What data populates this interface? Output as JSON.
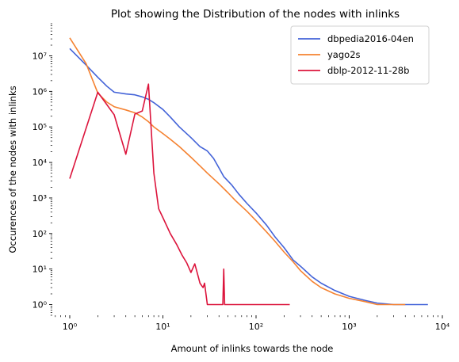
{
  "chart_data": {
    "type": "line",
    "title": "Plot showing the Distribution of the nodes with inlinks",
    "xlabel": "Amount of inlinks towards the node",
    "ylabel": "Occurences of the nodes with inlinks",
    "x_scale": "log",
    "y_scale": "log",
    "xlim": [
      0.65,
      10000
    ],
    "ylim": [
      0.5,
      80000000
    ],
    "grid": false,
    "legend_position": "top-right",
    "x_ticks": [
      {
        "value": 1,
        "label": "10⁰"
      },
      {
        "value": 10,
        "label": "10¹"
      },
      {
        "value": 100,
        "label": "10²"
      },
      {
        "value": 1000,
        "label": "10³"
      },
      {
        "value": 10000,
        "label": "10⁴"
      }
    ],
    "y_ticks": [
      {
        "value": 1,
        "label": "10⁰"
      },
      {
        "value": 10,
        "label": "10¹"
      },
      {
        "value": 100,
        "label": "10²"
      },
      {
        "value": 1000,
        "label": "10³"
      },
      {
        "value": 10000,
        "label": "10⁴"
      },
      {
        "value": 100000,
        "label": "10⁵"
      },
      {
        "value": 1000000,
        "label": "10⁶"
      },
      {
        "value": 10000000,
        "label": "10⁷"
      }
    ],
    "series": [
      {
        "name": "dbpedia2016-04en",
        "color": "#4363d8",
        "points": [
          [
            1,
            16000000
          ],
          [
            1.5,
            5500000
          ],
          [
            2,
            2500000
          ],
          [
            2.5,
            1400000
          ],
          [
            3,
            950000
          ],
          [
            4,
            850000
          ],
          [
            5,
            800000
          ],
          [
            6,
            700000
          ],
          [
            7,
            600000
          ],
          [
            8,
            480000
          ],
          [
            10,
            310000
          ],
          [
            12,
            190000
          ],
          [
            15,
            100000
          ],
          [
            20,
            50000
          ],
          [
            25,
            28000
          ],
          [
            30,
            21000
          ],
          [
            35,
            13000
          ],
          [
            40,
            7000
          ],
          [
            45,
            4000
          ],
          [
            55,
            2300
          ],
          [
            65,
            1300
          ],
          [
            80,
            700
          ],
          [
            100,
            380
          ],
          [
            130,
            170
          ],
          [
            160,
            80
          ],
          [
            200,
            40
          ],
          [
            250,
            18
          ],
          [
            300,
            12
          ],
          [
            400,
            6
          ],
          [
            500,
            4
          ],
          [
            700,
            2.5
          ],
          [
            1000,
            1.7
          ],
          [
            1500,
            1.3
          ],
          [
            2000,
            1.1
          ],
          [
            3000,
            1
          ],
          [
            7000,
            1
          ]
        ]
      },
      {
        "name": "yago2s",
        "color": "#f58231",
        "points": [
          [
            1,
            32000000
          ],
          [
            1.5,
            6000000
          ],
          [
            2,
            900000
          ],
          [
            2.5,
            500000
          ],
          [
            3,
            370000
          ],
          [
            4,
            300000
          ],
          [
            5,
            250000
          ],
          [
            6,
            190000
          ],
          [
            7,
            140000
          ],
          [
            8,
            100000
          ],
          [
            10,
            65000
          ],
          [
            12,
            45000
          ],
          [
            15,
            28000
          ],
          [
            20,
            14000
          ],
          [
            25,
            8000
          ],
          [
            30,
            5000
          ],
          [
            40,
            2500
          ],
          [
            50,
            1400
          ],
          [
            60,
            850
          ],
          [
            80,
            420
          ],
          [
            100,
            230
          ],
          [
            130,
            110
          ],
          [
            160,
            60
          ],
          [
            200,
            30
          ],
          [
            250,
            16
          ],
          [
            300,
            9
          ],
          [
            400,
            4.5
          ],
          [
            500,
            3
          ],
          [
            700,
            2
          ],
          [
            1000,
            1.5
          ],
          [
            1500,
            1.2
          ],
          [
            2000,
            1
          ],
          [
            4000,
            1
          ]
        ]
      },
      {
        "name": "dblp-2012-11-28b",
        "color": "#dc143c",
        "points": [
          [
            1,
            3500
          ],
          [
            2,
            950000
          ],
          [
            3,
            220000
          ],
          [
            4,
            17000
          ],
          [
            5,
            230000
          ],
          [
            6,
            280000
          ],
          [
            7,
            1600000
          ],
          [
            8,
            5000
          ],
          [
            9,
            500
          ],
          [
            10,
            280
          ],
          [
            12,
            100
          ],
          [
            14,
            50
          ],
          [
            16,
            25
          ],
          [
            18,
            15
          ],
          [
            20,
            8
          ],
          [
            22,
            14
          ],
          [
            24,
            6
          ],
          [
            25,
            4
          ],
          [
            27,
            3
          ],
          [
            28,
            4
          ],
          [
            30,
            1
          ],
          [
            44,
            1
          ],
          [
            45,
            10
          ],
          [
            46,
            1
          ],
          [
            230,
            1
          ]
        ]
      }
    ]
  }
}
